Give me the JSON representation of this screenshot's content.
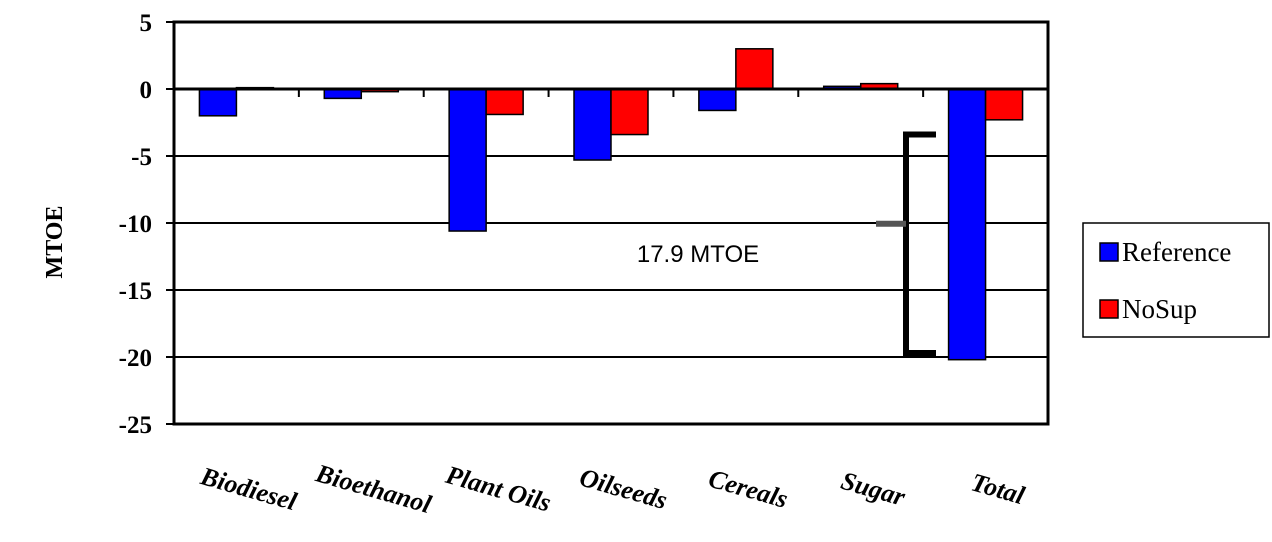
{
  "chart_data": {
    "type": "bar",
    "title": "",
    "xlabel": "",
    "ylabel": "MTOE",
    "ylim": [
      -25,
      5
    ],
    "yticks": [
      5,
      0,
      -5,
      -10,
      -15,
      -20,
      -25
    ],
    "grid": true,
    "legend_position": "right",
    "categories": [
      "Biodiesel",
      "Bioethanol",
      "Plant Oils",
      "Oilseeds",
      "Cereals",
      "Sugar",
      "Total"
    ],
    "series": [
      {
        "name": "Reference",
        "color": "#0000ff",
        "values": [
          -2.0,
          -0.7,
          -10.6,
          -5.3,
          -1.6,
          0.2,
          -20.2
        ]
      },
      {
        "name": "NoSup",
        "color": "#ff0000",
        "values": [
          0.1,
          -0.2,
          -1.9,
          -3.4,
          3.0,
          0.4,
          -2.3
        ]
      }
    ],
    "annotations": [
      {
        "text": "17.9 MTOE",
        "bracket_from": -3.4,
        "bracket_to": -19.7
      }
    ]
  }
}
